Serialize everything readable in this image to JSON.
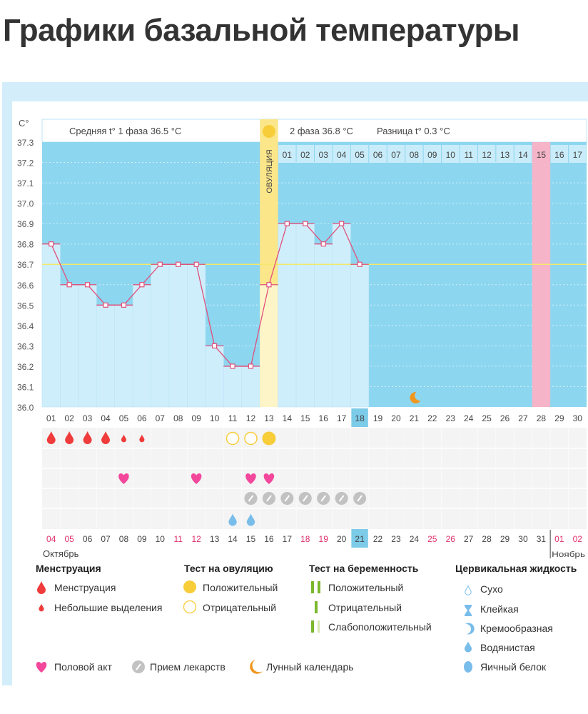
{
  "page_title": "Графики базальной температуры",
  "chart_data": {
    "type": "line",
    "ylabel": "C°",
    "ylim": [
      36.0,
      37.3
    ],
    "yticks": [
      "37.3",
      "37.2",
      "37.1",
      "37.0",
      "36.9",
      "36.8",
      "36.7",
      "36.6",
      "36.5",
      "36.4",
      "36.3",
      "36.2",
      "36.1",
      "36.0"
    ],
    "cycle_days": [
      "01",
      "02",
      "03",
      "04",
      "05",
      "06",
      "07",
      "08",
      "09",
      "10",
      "11",
      "12",
      "13",
      "14",
      "15",
      "16",
      "17",
      "18",
      "19",
      "20",
      "21",
      "22",
      "23",
      "24",
      "25",
      "26",
      "27",
      "28",
      "29",
      "30"
    ],
    "temperatures": [
      36.8,
      36.6,
      36.6,
      36.5,
      36.5,
      36.6,
      36.7,
      36.7,
      36.7,
      36.3,
      36.2,
      36.2,
      36.6,
      36.9,
      36.9,
      36.8,
      36.9,
      36.7
    ],
    "coverline": 36.7,
    "current_day": 18,
    "ovulation_day": 13,
    "ovulation_label": "ОВУЛЯЦИЯ",
    "phase1_text": "Средняя t° 1 фаза 36.5 °C",
    "phase2_text": "2 фаза 36.8 °C",
    "diff_text": "Разница t° 0.3 °C",
    "phase2_days": [
      "01",
      "02",
      "03",
      "04",
      "05",
      "06",
      "07",
      "08",
      "09",
      "10",
      "11",
      "12",
      "13",
      "14",
      "15",
      "16",
      "17"
    ],
    "highlight_phase2_day": "15",
    "calendar_dates": [
      "04",
      "05",
      "06",
      "07",
      "08",
      "09",
      "10",
      "11",
      "12",
      "13",
      "14",
      "15",
      "16",
      "17",
      "18",
      "19",
      "20",
      "21",
      "22",
      "23",
      "24",
      "25",
      "26",
      "27",
      "28",
      "29",
      "30",
      "31",
      "01",
      "02"
    ],
    "weekend_dates_idx": [
      0,
      1,
      7,
      8,
      14,
      15,
      21,
      22,
      28,
      29
    ],
    "months": [
      "Октябрь",
      "Ноябрь"
    ],
    "menstruation_heavy": [
      1,
      2,
      3,
      4
    ],
    "menstruation_light": [
      5,
      6
    ],
    "ovulation_test_negative": [
      11,
      12
    ],
    "ovulation_test_positive": [
      13
    ],
    "intercourse": [
      5,
      9,
      12,
      13
    ],
    "medication": [
      12,
      13,
      14,
      15,
      16,
      17,
      18
    ],
    "cervical_watery": [
      11,
      12
    ],
    "moon": [
      21
    ],
    "colors": {
      "bg_dark": "#8dd6f0",
      "bar": "#cfeefb",
      "line": "#e0507a",
      "coverline": "#f4e86a",
      "ovulation": "#fbe68a",
      "pink_day": "#f6b4c8",
      "today": "#7ccbe8"
    }
  },
  "legend": {
    "menstruation": {
      "title": "Менструация",
      "items": [
        "Менструация",
        "Небольшие выделения"
      ]
    },
    "ovulation_test": {
      "title": "Тест на овуляцию",
      "items": [
        "Положительный",
        "Отрицательный"
      ]
    },
    "pregnancy_test": {
      "title": "Тест на беременность",
      "items": [
        "Положительный",
        "Отрицательный",
        "Слабоположительный"
      ]
    },
    "cervical": {
      "title": "Цервикальная жидкость",
      "items": [
        "Сухо",
        "Клейкая",
        "Кремообразная",
        "Водянистая",
        "Яичный белок"
      ]
    },
    "other": [
      "Половой акт",
      "Прием лекарств",
      "Лунный календарь"
    ]
  }
}
